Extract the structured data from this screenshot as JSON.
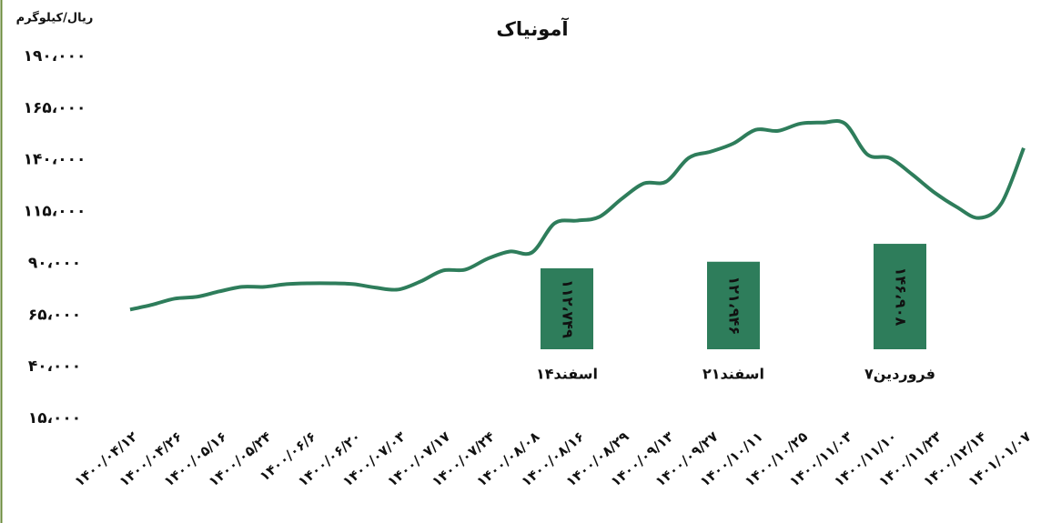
{
  "chart_data": {
    "type": "line",
    "title": "آمونیاک",
    "y_label": "ریال/کیلوگرم",
    "color": "#2e7d5b",
    "categories": [
      "۱۴۰۰/۰۴/۱۲",
      null,
      "۱۴۰۰/۰۴/۲۶",
      null,
      "۱۴۰۰/۰۵/۱۶",
      null,
      "۱۴۰۰/۰۵/۲۴",
      null,
      "۱۴۰۰/۰۶/۶",
      null,
      "۱۴۰۰/۰۶/۲۰",
      null,
      "۱۴۰۰/۰۷/۰۳",
      null,
      "۱۴۰۰/۰۷/۱۷",
      null,
      "۱۴۰۰/۰۷/۲۴",
      null,
      "۱۴۰۰/۰۸/۰۸",
      null,
      "۱۴۰۰/۰۸/۱۶",
      null,
      "۱۴۰۰/۰۸/۲۹",
      null,
      "۱۴۰۰/۰۹/۱۳",
      null,
      "۱۴۰۰/۰۹/۲۷",
      null,
      "۱۴۰۰/۱۰/۱۱",
      null,
      "۱۴۰۰/۱۰/۲۵",
      null,
      "۱۴۰۰/۱۱/۰۳",
      null,
      "۱۴۰۰/۱۱/۱۰",
      null,
      "۱۴۰۰/۱۱/۲۳",
      null,
      "۱۴۰۰/۱۲/۱۴",
      null,
      "۱۴۰۱/۰۱/۰۷"
    ],
    "values": [
      67600,
      70000,
      72900,
      73800,
      76400,
      78600,
      78600,
      79900,
      80300,
      80300,
      79900,
      78200,
      77300,
      81200,
      86500,
      86900,
      92200,
      95700,
      95300,
      109300,
      110600,
      112400,
      121100,
      128600,
      129500,
      140900,
      144000,
      147900,
      154500,
      154000,
      157500,
      158000,
      157500,
      142600,
      140900,
      133000,
      124200,
      117200,
      111900,
      118900,
      145700
    ],
    "ylim": [
      15000,
      190000
    ],
    "yticks": [
      {
        "value": 15000,
        "label": "۱۵،۰۰۰"
      },
      {
        "value": 40000,
        "label": "۴۰،۰۰۰"
      },
      {
        "value": 65000,
        "label": "۶۵،۰۰۰"
      },
      {
        "value": 90000,
        "label": "۹۰،۰۰۰"
      },
      {
        "value": 115000,
        "label": "۱۱۵،۰۰۰"
      },
      {
        "value": 140000,
        "label": "۱۴۰،۰۰۰"
      },
      {
        "value": 165000,
        "label": "۱۶۵،۰۰۰"
      },
      {
        "value": 190000,
        "label": "۱۹۰،۰۰۰"
      }
    ],
    "bars": {
      "color": "#2e7d5b",
      "categories": [
        "۱۴اسفند",
        "۲۱اسفند",
        "۷فروردین"
      ],
      "values": [
        112749,
        121946,
        146908
      ],
      "value_labels": [
        "۱۱۲،۷۴۹",
        "۱۲۱،۹۴۶",
        "۱۴۶،۹۰۸"
      ]
    }
  }
}
